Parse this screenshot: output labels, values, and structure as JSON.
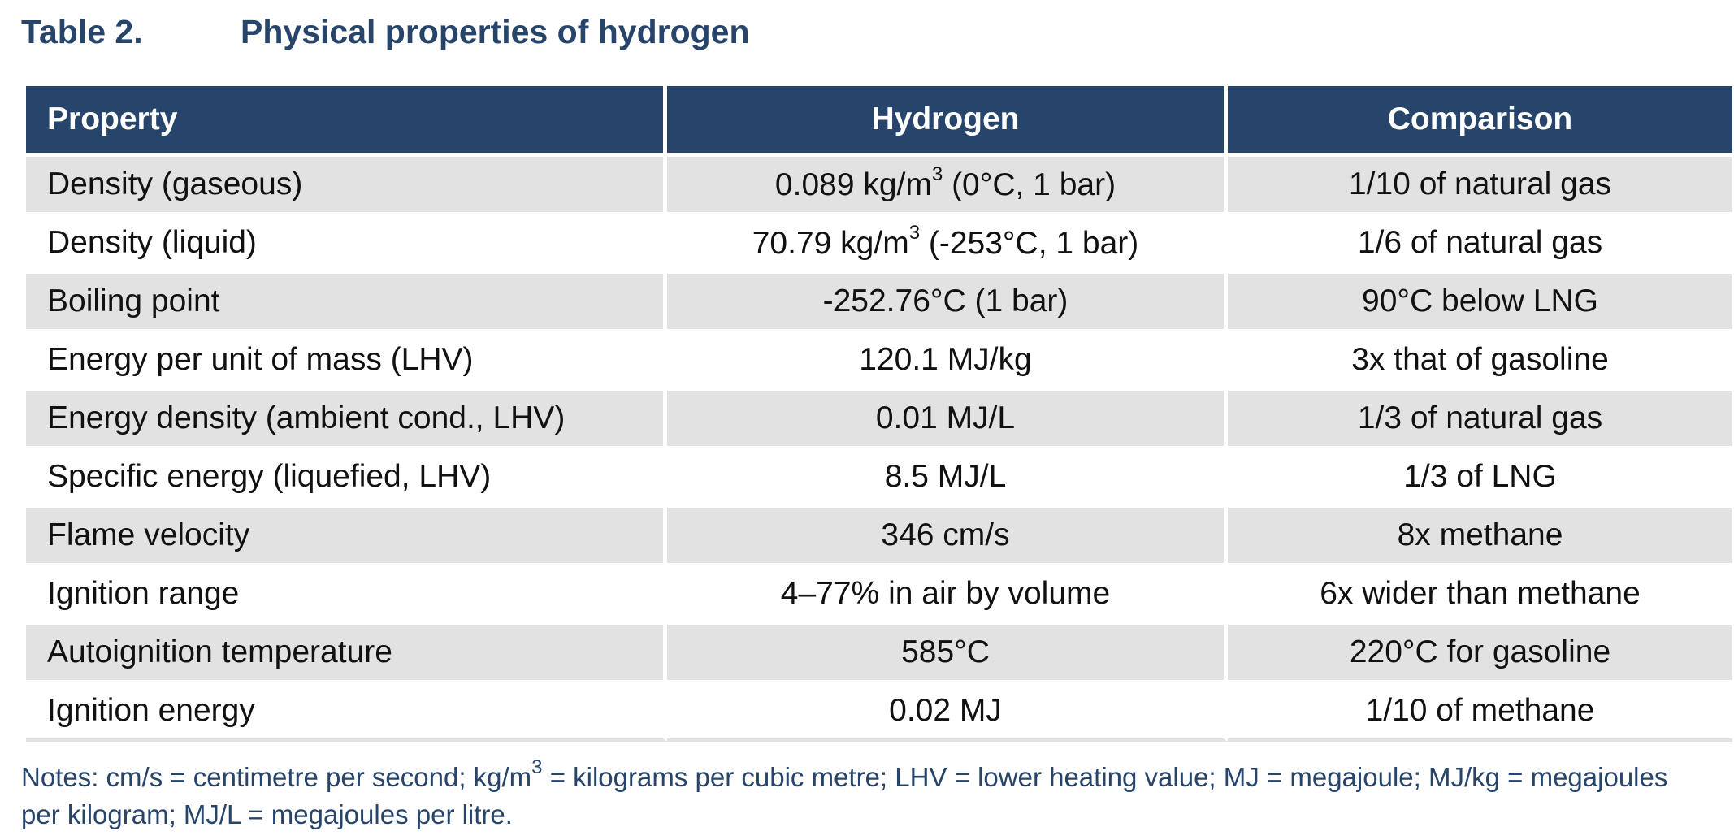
{
  "title": {
    "number": "Table 2.",
    "text": "Physical properties of hydrogen"
  },
  "table": {
    "headers": [
      "Property",
      "Hydrogen",
      "Comparison"
    ],
    "rows": [
      {
        "property": "Density (gaseous)",
        "hydrogen_pre": "0.089 kg/m",
        "hydrogen_sup": "3",
        "hydrogen_post": " (0°C, 1 bar)",
        "comparison": "1/10 of natural gas"
      },
      {
        "property": "Density (liquid)",
        "hydrogen_pre": "70.79 kg/m",
        "hydrogen_sup": "3",
        "hydrogen_post": " (-253°C, 1 bar)",
        "comparison": "1/6 of natural gas"
      },
      {
        "property": "Boiling point",
        "hydrogen_pre": "-252.76°C (1 bar)",
        "comparison": "90°C below LNG"
      },
      {
        "property": "Energy per unit of mass (LHV)",
        "hydrogen_pre": "120.1 MJ/kg",
        "comparison": "3x that of gasoline"
      },
      {
        "property": "Energy density (ambient cond., LHV)",
        "hydrogen_pre": "0.01 MJ/L",
        "comparison": "1/3 of natural gas"
      },
      {
        "property": "Specific energy (liquefied, LHV)",
        "hydrogen_pre": "8.5 MJ/L",
        "comparison": "1/3 of LNG"
      },
      {
        "property": "Flame velocity",
        "hydrogen_pre": "346 cm/s",
        "comparison": "8x methane"
      },
      {
        "property": "Ignition range",
        "hydrogen_pre": "4–77% in air by volume",
        "comparison": "6x wider than methane"
      },
      {
        "property": "Autoignition temperature",
        "hydrogen_pre": "585°C",
        "comparison": "220°C for gasoline"
      },
      {
        "property": "Ignition energy",
        "hydrogen_pre": "0.02 MJ",
        "comparison": "1/10 of methane"
      }
    ]
  },
  "notes": {
    "pre": "Notes: cm/s = centimetre per second; kg/m",
    "sup": "3",
    "post": " = kilograms per cubic metre; LHV = lower heating value; MJ = megajoule; MJ/kg = megajoules per kilogram; MJ/L = megajoules per litre."
  },
  "colors": {
    "header_bg": "#27456b",
    "title_text": "#27456b",
    "row_shade": "#e2e2e2"
  }
}
